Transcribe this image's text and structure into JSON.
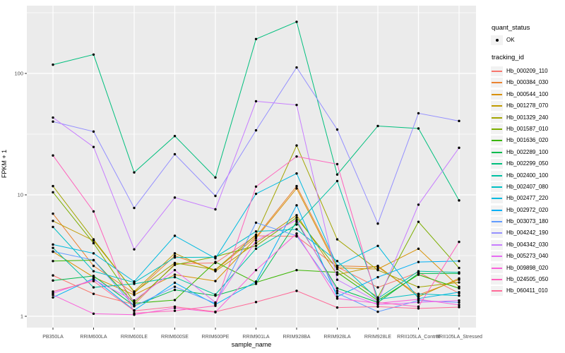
{
  "x_axis": {
    "title": "sample_name"
  },
  "y_axis": {
    "title": "FPKM + 1",
    "tick_labels": [
      "1",
      "10",
      "100"
    ]
  },
  "legend": {
    "quant_status": {
      "title": "quant_status",
      "items": [
        {
          "label": "OK"
        }
      ]
    },
    "tracking_id": {
      "title": "tracking_id"
    }
  },
  "chart_data": {
    "type": "line",
    "title": "",
    "xlabel": "sample_name",
    "ylabel": "FPKM + 1",
    "yscale": "log10",
    "ylim": [
      1,
      300
    ],
    "y_major_ticks": [
      1,
      10,
      100
    ],
    "y_minor_ticks_log10": [
      0.5,
      1.5,
      2.5
    ],
    "grid": "on",
    "legend_position": "right",
    "point_color": "#000000",
    "panel_bg": "#EBEBEB",
    "grid_color": "#FFFFFF",
    "tick_text_color": "#4D4D4D",
    "categories": [
      "PB350LA",
      "RRIM600LA",
      "RRIM600LE",
      "RRIM600SE",
      "RRIM600PE",
      "RRIM901LA",
      "RRIM928BA",
      "RRIM928LA",
      "RRIM928LE",
      "RRII105LA_Control",
      "RRII105LA_Stressed"
    ],
    "series": [
      {
        "name": "Hb_000209_110",
        "color": "#F8766D",
        "values": [
          2.17,
          1.53,
          1.25,
          2.7,
          2.75,
          4.6,
          4.55,
          2.55,
          1.73,
          2.3,
          1.55
        ]
      },
      {
        "name": "Hb_000384_030",
        "color": "#EA8331",
        "values": [
          7.0,
          2.6,
          1.55,
          3.15,
          2.4,
          4.5,
          11.8,
          2.6,
          2.55,
          1.5,
          2.0
        ]
      },
      {
        "name": "Hb_000544_100",
        "color": "#D89000",
        "values": [
          3.4,
          2.1,
          1.5,
          2.2,
          1.95,
          4.4,
          11.3,
          2.5,
          2.45,
          3.6,
          1.75
        ]
      },
      {
        "name": "Hb_001278_070",
        "color": "#C09B00",
        "values": [
          6.1,
          4.2,
          1.6,
          3.3,
          2.35,
          4.0,
          6.8,
          2.2,
          2.6,
          1.45,
          2.05
        ]
      },
      {
        "name": "Hb_001329_240",
        "color": "#A3A500",
        "values": [
          11.8,
          4.3,
          1.58,
          2.75,
          2.42,
          4.7,
          25.5,
          4.3,
          2.4,
          1.74,
          1.9
        ]
      },
      {
        "name": "Hb_001587_010",
        "color": "#7CAE00",
        "values": [
          10.5,
          4.0,
          1.3,
          2.65,
          3.1,
          3.8,
          6.5,
          2.45,
          1.43,
          6.0,
          2.5
        ]
      },
      {
        "name": "Hb_001636_020",
        "color": "#39B600",
        "values": [
          2.85,
          2.9,
          1.28,
          1.36,
          2.8,
          1.9,
          2.4,
          2.3,
          1.35,
          2.2,
          1.7
        ]
      },
      {
        "name": "Hb_002289_100",
        "color": "#00BB4E",
        "values": [
          1.97,
          2.15,
          1.22,
          1.65,
          1.48,
          1.85,
          6.0,
          1.7,
          1.3,
          2.25,
          2.25
        ]
      },
      {
        "name": "Hb_002299_050",
        "color": "#00BF7D",
        "values": [
          118,
          143,
          15.3,
          30.5,
          13.9,
          192,
          266,
          14.7,
          36.9,
          35.2,
          9.0
        ]
      },
      {
        "name": "Hb_002400_100",
        "color": "#00C1A3",
        "values": [
          3.66,
          1.73,
          1.85,
          2.1,
          1.51,
          3.6,
          5.7,
          13.0,
          1.4,
          2.35,
          2.3
        ]
      },
      {
        "name": "Hb_002407_080",
        "color": "#00BFC4",
        "values": [
          5.44,
          2.35,
          1.9,
          3.05,
          3.07,
          5.0,
          5.2,
          2.85,
          1.38,
          1.53,
          1.48
        ]
      },
      {
        "name": "Hb_002477_220",
        "color": "#00BAE0",
        "values": [
          3.9,
          3.3,
          1.93,
          4.6,
          3.0,
          10.2,
          15.0,
          2.6,
          3.8,
          1.4,
          1.58
        ]
      },
      {
        "name": "Hb_002972_020",
        "color": "#00B0F6",
        "values": [
          1.43,
          2.05,
          1.12,
          1.89,
          1.25,
          1.93,
          8.2,
          1.45,
          2.1,
          2.8,
          2.85
        ]
      },
      {
        "name": "Hb_003073_180",
        "color": "#619CFF",
        "values": [
          3.42,
          2.9,
          1.21,
          1.75,
          1.28,
          5.9,
          4.6,
          1.55,
          1.09,
          1.35,
          1.3
        ]
      },
      {
        "name": "Hb_004242_190",
        "color": "#9590FF",
        "values": [
          40.1,
          33.2,
          7.8,
          21.6,
          9.8,
          34,
          112,
          34.5,
          5.8,
          47,
          40.6
        ]
      },
      {
        "name": "Hb_004342_030",
        "color": "#C77CFF",
        "values": [
          43.3,
          24.8,
          3.56,
          9.5,
          7.6,
          59,
          55,
          2.0,
          1.32,
          8.3,
          24.4
        ]
      },
      {
        "name": "Hb_005273_040",
        "color": "#E76BF3",
        "values": [
          1.55,
          2.0,
          1.35,
          2.4,
          1.3,
          4.2,
          6.2,
          1.62,
          1.25,
          1.3,
          1.35
        ]
      },
      {
        "name": "Hb_009898_020",
        "color": "#FA62DB",
        "values": [
          1.5,
          1.05,
          1.03,
          1.17,
          1.08,
          2.4,
          4.8,
          1.4,
          1.28,
          1.38,
          1.24
        ]
      },
      {
        "name": "Hb_024505_050",
        "color": "#FF62BC",
        "values": [
          21.1,
          7.3,
          1.06,
          1.11,
          1.22,
          11.7,
          20.7,
          17.9,
          1.3,
          1.2,
          4.1
        ]
      },
      {
        "name": "Hb_060411_010",
        "color": "#FF6A98",
        "values": [
          1.6,
          1.95,
          1.11,
          1.2,
          1.09,
          1.31,
          1.62,
          1.18,
          1.2,
          1.16,
          1.19
        ]
      }
    ]
  }
}
